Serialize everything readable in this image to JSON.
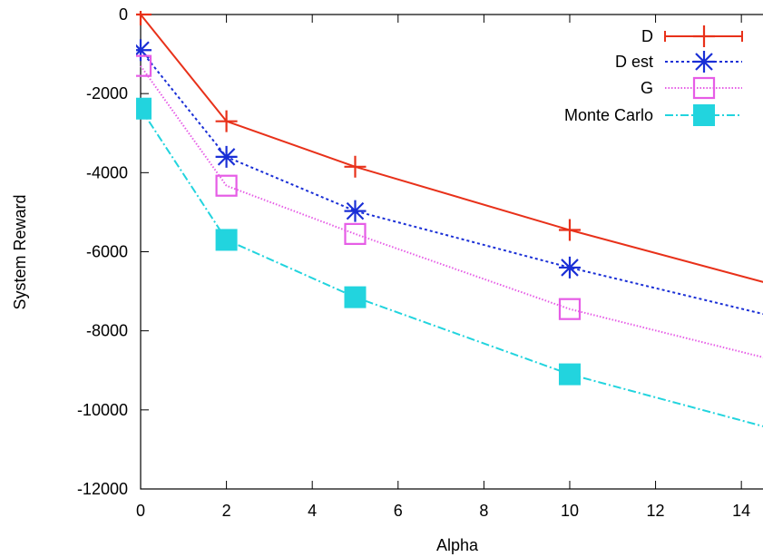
{
  "chart_data": {
    "type": "line",
    "xlabel": "Alpha",
    "ylabel": "System Reward",
    "xlim": [
      0,
      14.8
    ],
    "ylim": [
      -12000,
      0
    ],
    "xticks": [
      0,
      2,
      4,
      6,
      8,
      10,
      12,
      14
    ],
    "yticks": [
      0,
      -2000,
      -4000,
      -6000,
      -8000,
      -10000,
      -12000
    ],
    "grid": false,
    "legend_position": "top-right",
    "series": [
      {
        "name": "D",
        "color": "#e8311a",
        "dash": "solid",
        "marker": "plus",
        "x": [
          0,
          2,
          5,
          10,
          14.8
        ],
        "y": [
          0,
          -2700,
          -3850,
          -5450,
          -6850
        ]
      },
      {
        "name": "D est",
        "color": "#1a2fd6",
        "dash": "dotted",
        "marker": "asterisk",
        "x": [
          0,
          2,
          5,
          10,
          14.8
        ],
        "y": [
          -900,
          -3600,
          -4970,
          -6400,
          -7650
        ]
      },
      {
        "name": "G",
        "color": "#e65ce6",
        "dash": "fine-dotted",
        "marker": "open-square",
        "x": [
          0,
          2,
          5,
          10,
          14.8
        ],
        "y": [
          -1300,
          -4330,
          -5550,
          -7450,
          -8750
        ]
      },
      {
        "name": "Monte Carlo",
        "color": "#22d4de",
        "dash": "dash-dot",
        "marker": "filled-square",
        "x": [
          0,
          2,
          5,
          10,
          14.8
        ],
        "y": [
          -2380,
          -5700,
          -7150,
          -9100,
          -10500
        ]
      }
    ]
  }
}
